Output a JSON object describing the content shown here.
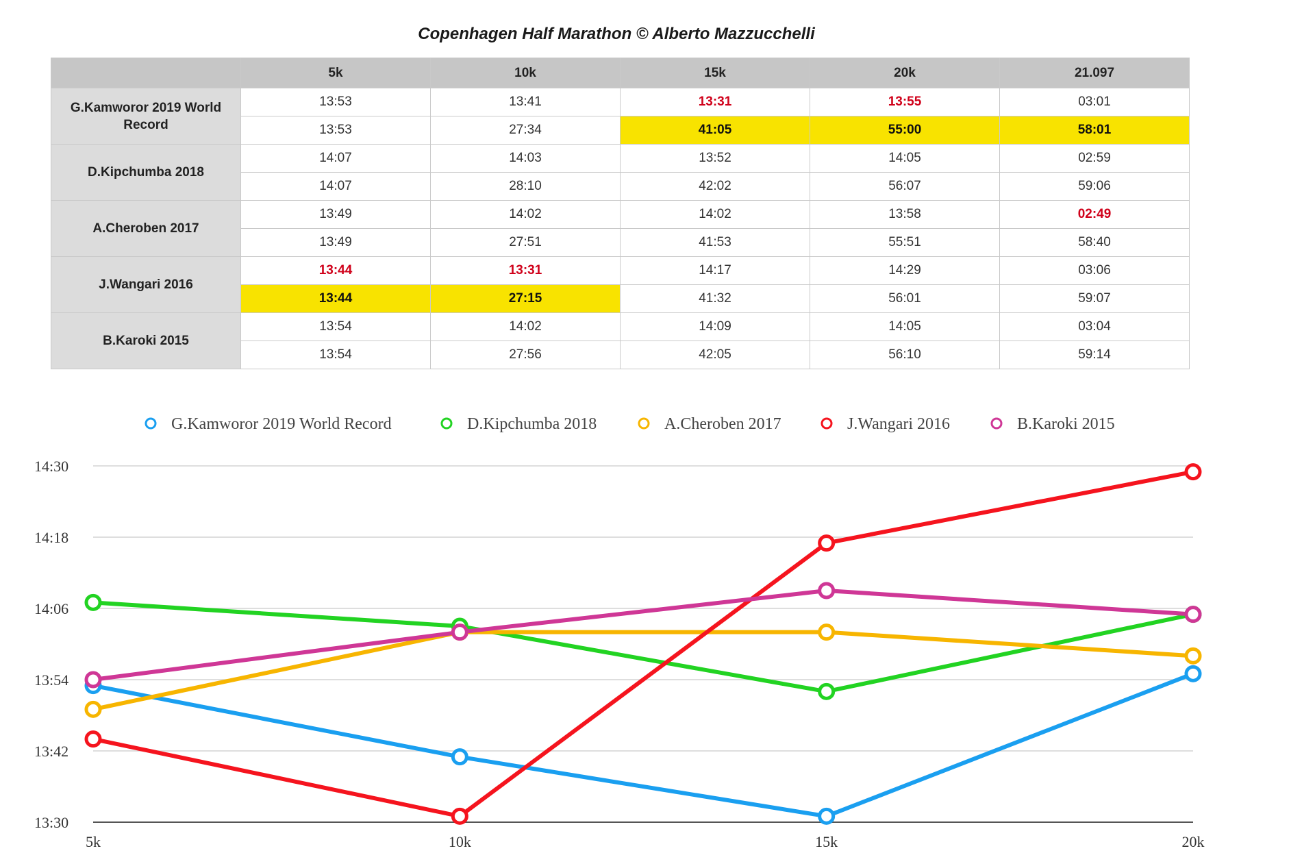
{
  "title": "Copenhagen Half Marathon © Alberto Mazzucchelli",
  "table": {
    "columns": [
      "",
      "5k",
      "10k",
      "15k",
      "20k",
      "21.097"
    ],
    "runners": [
      {
        "name": "G.Kamworor 2019 World Record",
        "split_row": [
          "13:53",
          "13:41",
          "13:31",
          "13:55",
          "03:01"
        ],
        "cumulative_row": [
          "13:53",
          "27:34",
          "41:05",
          "55:00",
          "58:01"
        ],
        "split_red": [
          false,
          false,
          true,
          true,
          false
        ],
        "cumulative_highlight": [
          false,
          false,
          true,
          true,
          true
        ]
      },
      {
        "name": "D.Kipchumba 2018",
        "split_row": [
          "14:07",
          "14:03",
          "13:52",
          "14:05",
          "02:59"
        ],
        "cumulative_row": [
          "14:07",
          "28:10",
          "42:02",
          "56:07",
          "59:06"
        ],
        "split_red": [
          false,
          false,
          false,
          false,
          false
        ],
        "cumulative_highlight": [
          false,
          false,
          false,
          false,
          false
        ]
      },
      {
        "name": "A.Cheroben 2017",
        "split_row": [
          "13:49",
          "14:02",
          "14:02",
          "13:58",
          "02:49"
        ],
        "cumulative_row": [
          "13:49",
          "27:51",
          "41:53",
          "55:51",
          "58:40"
        ],
        "split_red": [
          false,
          false,
          false,
          false,
          true
        ],
        "cumulative_highlight": [
          false,
          false,
          false,
          false,
          false
        ]
      },
      {
        "name": "J.Wangari 2016",
        "split_row": [
          "13:44",
          "13:31",
          "14:17",
          "14:29",
          "03:06"
        ],
        "cumulative_row": [
          "13:44",
          "27:15",
          "41:32",
          "56:01",
          "59:07"
        ],
        "split_red": [
          true,
          true,
          false,
          false,
          false
        ],
        "cumulative_highlight": [
          true,
          true,
          false,
          false,
          false
        ]
      },
      {
        "name": "B.Karoki 2015",
        "split_row": [
          "13:54",
          "14:02",
          "14:09",
          "14:05",
          "03:04"
        ],
        "cumulative_row": [
          "13:54",
          "27:56",
          "42:05",
          "56:10",
          "59:14"
        ],
        "split_red": [
          false,
          false,
          false,
          false,
          false
        ],
        "cumulative_highlight": [
          false,
          false,
          false,
          false,
          false
        ]
      }
    ],
    "highlight_color": "#f8e300",
    "red_text_color": "#d0021b",
    "header_color": "#c6c6c6"
  },
  "chart_data": {
    "type": "line",
    "categories": [
      "5k",
      "10k",
      "15k",
      "20k"
    ],
    "y_unit": "seconds (mm:ss split per 5 km)",
    "ylim": [
      810,
      870
    ],
    "yticks": [
      810,
      822,
      834,
      846,
      858,
      870
    ],
    "ytick_labels": [
      "13:30",
      "13:42",
      "13:54",
      "14:06",
      "14:18",
      "14:30"
    ],
    "grid": true,
    "legend_position": "top",
    "series": [
      {
        "name": "G.Kamworor 2019 World Record",
        "color": "#1a9ff0",
        "values": [
          833,
          821,
          811,
          835
        ]
      },
      {
        "name": "D.Kipchumba 2018",
        "color": "#22d322",
        "values": [
          847,
          843,
          832,
          845
        ]
      },
      {
        "name": "A.Cheroben 2017",
        "color": "#f7b500",
        "values": [
          829,
          842,
          842,
          838
        ]
      },
      {
        "name": "J.Wangari 2016",
        "color": "#f5141e",
        "values": [
          824,
          811,
          857,
          869
        ]
      },
      {
        "name": "B.Karoki 2015",
        "color": "#cf3796",
        "values": [
          834,
          842,
          849,
          845
        ]
      }
    ]
  }
}
